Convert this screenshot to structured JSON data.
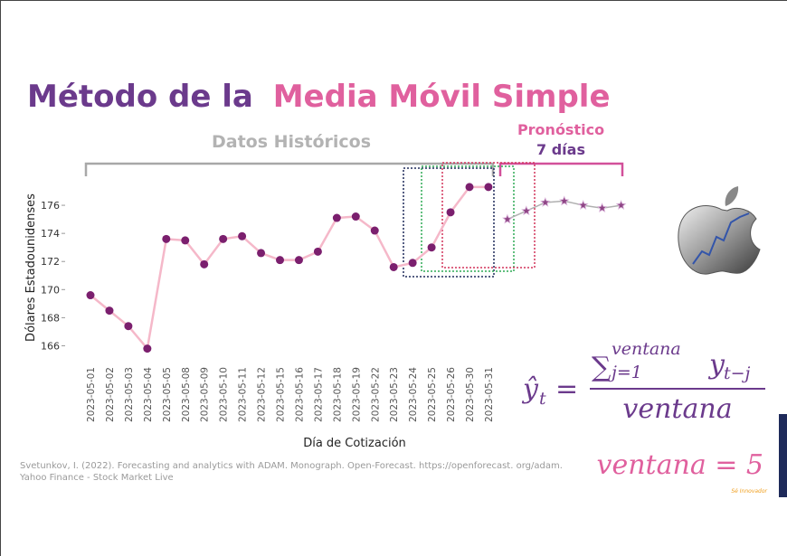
{
  "chart_data": {
    "type": "line",
    "title": [
      "Método de la",
      "Media Móvil Simple"
    ],
    "annotations": {
      "historical": "Datos Históricos",
      "forecast_title": "Pronóstico",
      "forecast_days": "7 días"
    },
    "x_label": "Día de Cotización",
    "y_label": "Dólares Estadounidenses",
    "categories": [
      "2023-05-01",
      "2023-05-02",
      "2023-05-03",
      "2023-05-04",
      "2023-05-05",
      "2023-05-08",
      "2023-05-09",
      "2023-05-10",
      "2023-05-11",
      "2023-05-12",
      "2023-05-15",
      "2023-05-16",
      "2023-05-17",
      "2023-05-18",
      "2023-05-19",
      "2023-05-22",
      "2023-05-23",
      "2023-05-24",
      "2023-05-25",
      "2023-05-26",
      "2023-05-30",
      "2023-05-31",
      null,
      null,
      null,
      null,
      null,
      null,
      null
    ],
    "series": [
      {
        "name": "Históricos",
        "color": "#7b1f6e",
        "line_color": "#f5b8c9",
        "values": [
          169.6,
          168.5,
          167.4,
          165.8,
          173.6,
          173.5,
          171.8,
          173.6,
          173.8,
          172.6,
          172.1,
          172.1,
          172.7,
          175.1,
          175.2,
          174.2,
          171.6,
          171.9,
          173.0,
          175.5,
          177.3,
          177.3,
          null,
          null,
          null,
          null,
          null,
          null,
          null
        ]
      },
      {
        "name": "Pronóstico",
        "color": "#8e4585",
        "line_color": "#b0b0b0",
        "values": [
          null,
          null,
          null,
          null,
          null,
          null,
          null,
          null,
          null,
          null,
          null,
          null,
          null,
          null,
          null,
          null,
          null,
          null,
          null,
          null,
          null,
          null,
          175.0,
          175.6,
          176.2,
          176.3,
          176.0,
          175.8,
          176.0
        ]
      }
    ],
    "ylim": [
      165,
      178
    ],
    "yticks": [
      166,
      168,
      170,
      172,
      174,
      176
    ],
    "citation": [
      "Svetunkov, I. (2022). Forecasting and analytics with ADAM. Monograph. Open-Forecast. https://openforecast. org/adam.",
      "Yahoo Finance - Stock Market Live"
    ],
    "formula": {
      "lhs": "ŷ",
      "lhs_sub": "t",
      "equals": "=",
      "sigma": "∑",
      "sum_upper": "ventana",
      "sum_lower": "j=1",
      "term": "y",
      "term_sub": "t−j",
      "denominator": "ventana"
    },
    "window": "ventana = 5",
    "brand": "Sé Innovador"
  }
}
